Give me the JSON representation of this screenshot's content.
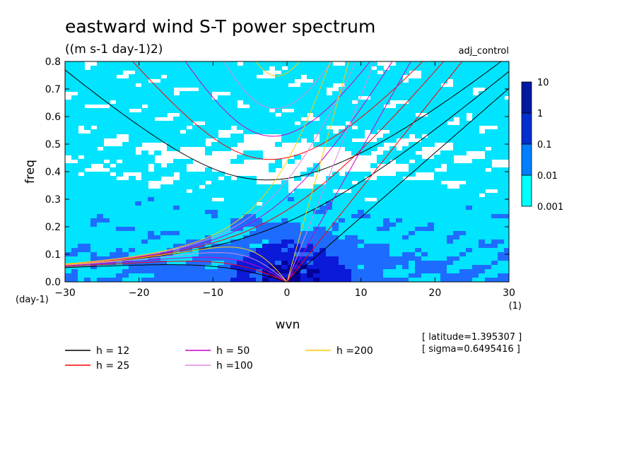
{
  "chart_data": {
    "type": "heatmap",
    "title": "eastward wind S-T power spectrum",
    "subtitle": "((m s-1 day-1)2)",
    "run_label": "adj_control",
    "xlabel": "wvn",
    "ylabel": "freq",
    "x_unit": "(1)",
    "y_unit": "(day-1)",
    "xlim": [
      -30,
      30
    ],
    "ylim": [
      0,
      0.8
    ],
    "x_ticks": [
      "-30",
      "-20",
      "-10",
      "0",
      "10",
      "20",
      "30"
    ],
    "y_ticks": [
      "0.0",
      "0.1",
      "0.2",
      "0.3",
      "0.4",
      "0.5",
      "0.6",
      "0.7",
      "0.8"
    ],
    "colorbar": {
      "levels": [
        "0.001",
        "0.01",
        "0.1",
        "1",
        "10"
      ],
      "colors": [
        "#00ffff",
        "#0080ff",
        "#0030d0",
        "#001aa0",
        "#3010a0"
      ]
    },
    "contour_fill_colors": [
      "#00e4ff",
      "#1e6cff",
      "#0a1ad8",
      "#000099"
    ],
    "dispersion_curves": [
      {
        "name": "h = 12",
        "h": 12,
        "color": "#000000"
      },
      {
        "name": "h = 25",
        "h": 25,
        "color": "#ff0000"
      },
      {
        "name": "h = 50",
        "h": 50,
        "color": "#cc00cc"
      },
      {
        "name": "h =100",
        "h": 100,
        "color": "#dd88dd"
      },
      {
        "name": "h =200",
        "h": 200,
        "color": "#ffcc00"
      }
    ],
    "info": [
      "[ latitude=1.395307 ]",
      "[ sigma=0.6495416 ]"
    ]
  }
}
